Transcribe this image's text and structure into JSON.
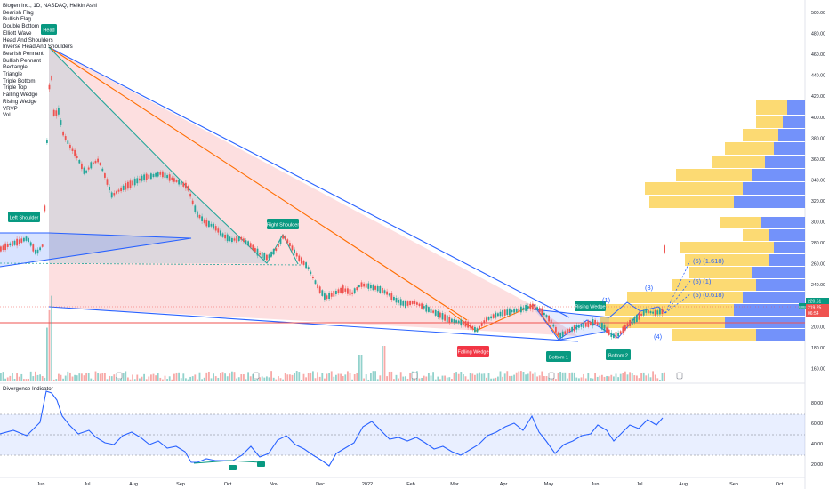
{
  "header": {
    "title": "Biogen Inc., 1D, NASDAQ, Heikin Ashi"
  },
  "legend_items": [
    "Bearish Flag",
    "Bullish Flag",
    "Double Bottom",
    "Elliott Wave",
    "Head And Shoulders",
    "Inverse Head And Shoulders",
    "Bearish Pennant",
    "Bullish Pennant",
    "Rectangle",
    "Triangle",
    "Triple Bottom",
    "Triple Top",
    "Falling Wedge",
    "Rising Wedge",
    "VRVP",
    "Vol"
  ],
  "pattern_labels": {
    "head": "Head",
    "left_shoulder": "Left Shoulder",
    "right_shoulder": "Right Shoulder",
    "falling_wedge": "Falling Wedge",
    "rising_wedge": "Rising Wedge",
    "bottom1": "Bottom 1",
    "bottom2": "Bottom 2"
  },
  "wave_labels": {
    "w1": "(1)",
    "w3": "(3)",
    "w4": "(4)",
    "w5a": "(5) (1.618)",
    "w5b": "(5) (1)",
    "w5c": "(5) (0.618)"
  },
  "price_axis": {
    "ticks": [
      "500.00",
      "480.00",
      "460.00",
      "440.00",
      "420.00",
      "400.00",
      "380.00",
      "360.00",
      "340.00",
      "320.00",
      "300.00",
      "280.00",
      "260.00",
      "240.00",
      "220.00",
      "200.00",
      "180.00",
      "160.00"
    ],
    "tags": {
      "price1": "220.61",
      "price2": "219.25",
      "countdown": "06:54",
      "symbol": "BIIB"
    }
  },
  "indicator": {
    "title": "Divergence Indicator",
    "ticks": [
      "80.00",
      "60.00",
      "40.00",
      "20.00"
    ],
    "band_upper": 70,
    "band_lower": 30
  },
  "time_axis": {
    "labels": [
      "Jun",
      "Jul",
      "Aug",
      "Sep",
      "Oct",
      "Nov",
      "Dec",
      "2022",
      "Feb",
      "Mar",
      "Apr",
      "May",
      "Jun",
      "Jul",
      "Aug",
      "Sep",
      "Oct"
    ]
  },
  "colors": {
    "up": "#26a69a",
    "down": "#ef5350",
    "wedge_blue": "#2962ff",
    "pink_fill": "#fcd4d6",
    "grey_fill": "#d1d4dc",
    "vrvp_yellow": "#fbd35b",
    "vrvp_blue": "#5b7ff9"
  }
}
